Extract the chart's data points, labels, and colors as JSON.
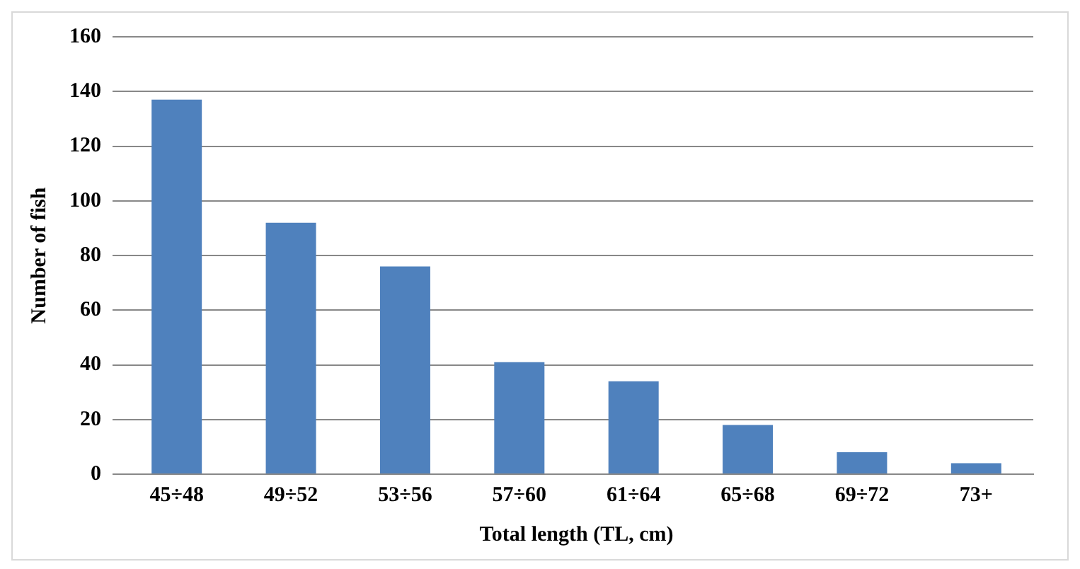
{
  "chart_data": {
    "type": "bar",
    "xlabel": "Total length (TL, cm)",
    "ylabel": "Number of fish",
    "categories": [
      "45÷48",
      "49÷52",
      "53÷56",
      "57÷60",
      "61÷64",
      "65÷68",
      "69÷72",
      "73+"
    ],
    "values": [
      137,
      92,
      76,
      41,
      34,
      18,
      8,
      4
    ],
    "color": "#4f81bd",
    "ylim": [
      0,
      160
    ],
    "yticks": [
      0,
      20,
      40,
      60,
      80,
      100,
      120,
      140,
      160
    ],
    "grid": "y",
    "legend": false
  }
}
